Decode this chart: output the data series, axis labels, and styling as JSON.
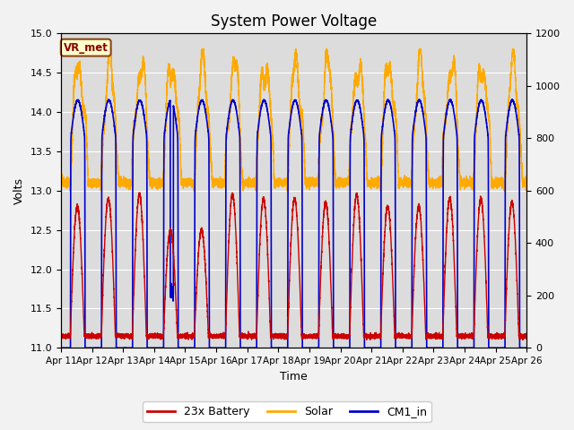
{
  "title": "System Power Voltage",
  "xlabel": "Time",
  "ylabel": "Volts",
  "ylim_left": [
    11.0,
    15.0
  ],
  "ylim_right": [
    0,
    1200
  ],
  "yticks_left": [
    11.0,
    11.5,
    12.0,
    12.5,
    13.0,
    13.5,
    14.0,
    14.5,
    15.0
  ],
  "yticks_right": [
    0,
    200,
    400,
    600,
    800,
    1000,
    1200
  ],
  "battery_color": "#cc0000",
  "solar_color": "#ffaa00",
  "cm1_color": "#0000cc",
  "annotation_text": "VR_met",
  "bg_color": "#dcdcdc",
  "legend_labels": [
    "23x Battery",
    "Solar",
    "CM1_in"
  ],
  "title_fontsize": 12,
  "label_fontsize": 9
}
